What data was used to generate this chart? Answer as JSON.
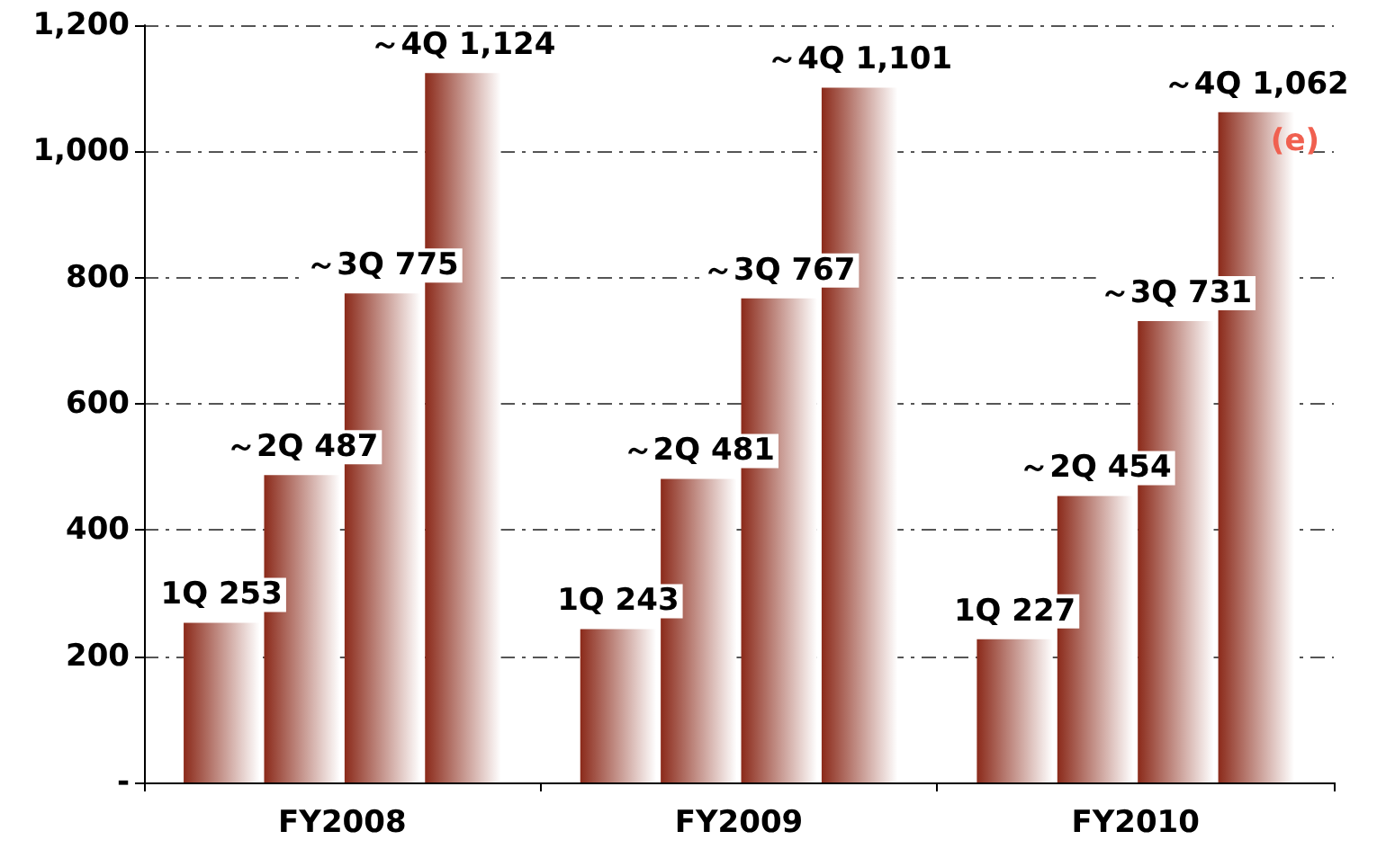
{
  "chart_data": {
    "type": "bar",
    "categories": [
      "FY2008",
      "FY2009",
      "FY2010"
    ],
    "series": [
      {
        "color": "#8b2a1a",
        "values": [
          253,
          243,
          227
        ],
        "value_labels": [
          "1Q 253",
          "1Q 243",
          "1Q 227"
        ]
      },
      {
        "color": "#8b2a1a",
        "values": [
          487,
          481,
          454
        ],
        "value_labels": [
          "～2Q 487",
          "～2Q 481",
          "～2Q 454"
        ]
      },
      {
        "color": "#8b2a1a",
        "values": [
          775,
          767,
          731
        ],
        "value_labels": [
          "～3Q 775",
          "～3Q 767",
          "～3Q 731"
        ]
      },
      {
        "color": "#8b2a1a",
        "values": [
          1124,
          1101,
          1062
        ],
        "value_labels": [
          "～4Q 1,124",
          "～4Q 1,101",
          "～4Q 1,062"
        ]
      }
    ],
    "ylim": [
      0,
      1200
    ],
    "yticks": [
      {
        "value": 0,
        "label": "-"
      },
      200,
      400,
      600,
      800,
      {
        "value": 1000,
        "label": "1,000"
      },
      {
        "value": 1200,
        "label": "1,200"
      }
    ],
    "grid": "y",
    "annotations": [
      "(e)"
    ]
  }
}
